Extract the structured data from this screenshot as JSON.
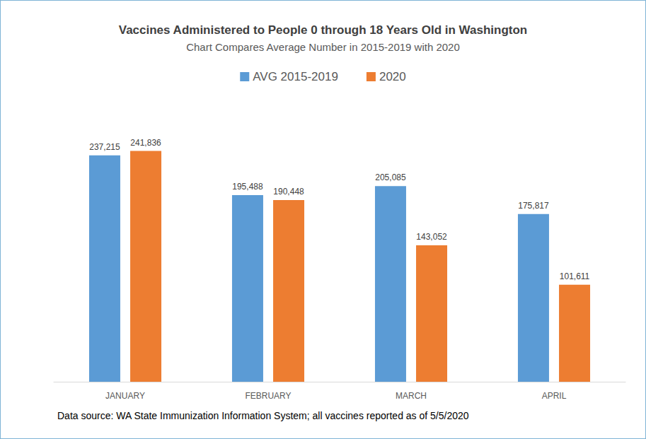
{
  "chart_data": {
    "type": "bar",
    "title": "Vaccines Administered to People 0 through 18 Years Old in Washington",
    "subtitle": "Chart Compares Average Number in 2015-2019 with 2020",
    "annotations": [
      "Data source: WA State Immunization Information System; all vaccines reported as of 5/5/2020"
    ],
    "categories": [
      "JANUARY",
      "FEBRUARY",
      "MARCH",
      "APRIL"
    ],
    "series": [
      {
        "name": "AVG 2015-2019",
        "color": "#5B9BD5",
        "values": [
          237215,
          195488,
          205085,
          175817
        ],
        "value_labels": [
          "237,215",
          "195,488",
          "205,085",
          "175,817"
        ]
      },
      {
        "name": "2020",
        "color": "#ED7D31",
        "values": [
          241836,
          190448,
          143052,
          101611
        ],
        "value_labels": [
          "241,836",
          "190,448",
          "143,052",
          "101,611"
        ]
      }
    ],
    "ylim": [
      0,
      300000
    ],
    "yticks": [
      0,
      50000,
      100000,
      150000,
      200000,
      250000,
      300000
    ],
    "grid": false,
    "legend": "top",
    "data_labels": true,
    "tick_labels": "x"
  }
}
